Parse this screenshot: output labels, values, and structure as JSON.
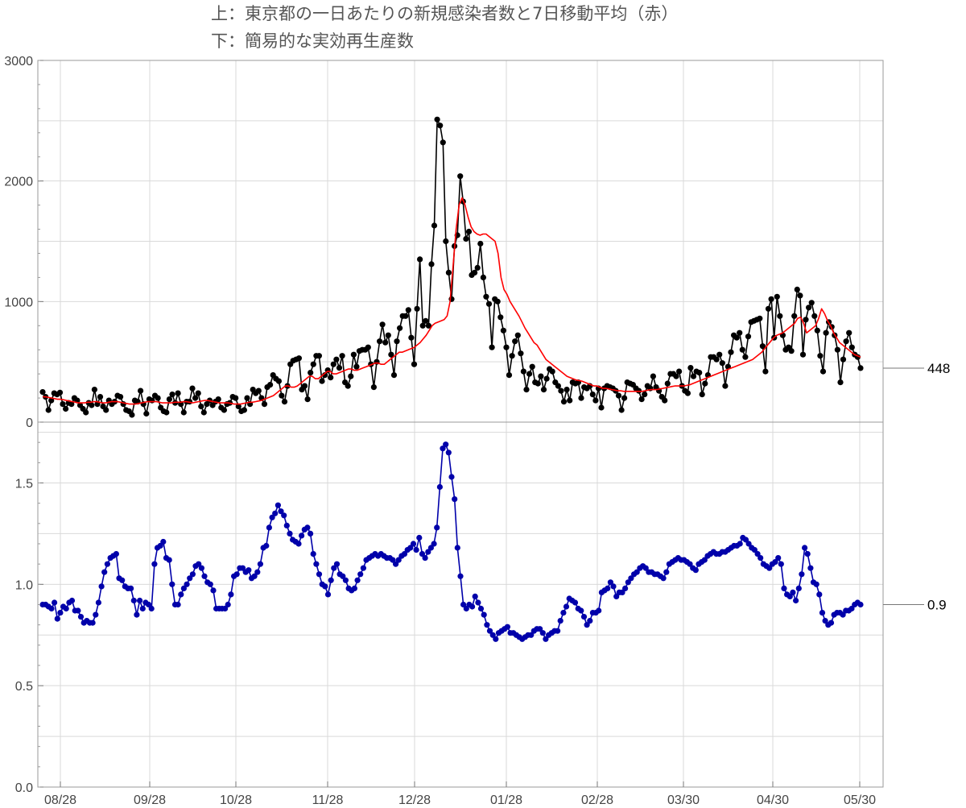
{
  "title": {
    "line1": "上：東京都の一日あたりの新規感染者数と7日移動平均（赤）",
    "line2": "下：簡易的な実効再生産数"
  },
  "chart_data": [
    {
      "type": "line",
      "panel": "top",
      "ylim": [
        0,
        3000
      ],
      "yticks": [
        "0",
        "1000",
        "2000",
        "3000"
      ],
      "grid": true,
      "callout_label": "448",
      "callout_value": 448,
      "series": [
        {
          "color": "#000000",
          "markers": true,
          "values": [
            250,
            210,
            100,
            180,
            240,
            230,
            245,
            150,
            110,
            160,
            150,
            200,
            180,
            140,
            110,
            80,
            160,
            140,
            270,
            150,
            210,
            130,
            100,
            180,
            150,
            170,
            220,
            210,
            150,
            100,
            90,
            60,
            180,
            170,
            260,
            150,
            70,
            190,
            180,
            220,
            200,
            120,
            90,
            80,
            190,
            230,
            160,
            240,
            150,
            80,
            170,
            170,
            280,
            200,
            240,
            130,
            80,
            150,
            180,
            140,
            170,
            190,
            120,
            100,
            150,
            160,
            210,
            200,
            130,
            90,
            100,
            200,
            150,
            270,
            240,
            260,
            200,
            150,
            290,
            310,
            390,
            360,
            340,
            220,
            170,
            300,
            480,
            510,
            520,
            530,
            270,
            300,
            190,
            410,
            480,
            550,
            550,
            340,
            390,
            430,
            370,
            480,
            520,
            450,
            550,
            330,
            300,
            380,
            560,
            460,
            590,
            600,
            600,
            620,
            480,
            290,
            500,
            670,
            810,
            660,
            720,
            560,
            390,
            670,
            780,
            880,
            880,
            930,
            700,
            480,
            940,
            1350,
            800,
            840,
            800,
            1310,
            1630,
            2510,
            2460,
            2320,
            1500,
            1240,
            1020,
            1460,
            1550,
            2040,
            1830,
            1520,
            1580,
            1220,
            1240,
            1280,
            1480,
            1200,
            1040,
            980,
            620,
            1020,
            1000,
            870,
            760,
            620,
            390,
            550,
            670,
            720,
            570,
            420,
            270,
            400,
            460,
            330,
            320,
            380,
            270,
            360,
            440,
            420,
            330,
            300,
            260,
            170,
            270,
            180,
            330,
            320,
            330,
            200,
            290,
            280,
            300,
            230,
            180,
            280,
            120,
            280,
            300,
            290,
            280,
            260,
            220,
            100,
            200,
            330,
            320,
            310,
            280,
            260,
            190,
            230,
            300,
            280,
            380,
            290,
            260,
            210,
            180,
            320,
            400,
            400,
            380,
            420,
            300,
            260,
            240,
            450,
            380,
            420,
            410,
            230,
            320,
            390,
            540,
            540,
            520,
            560,
            490,
            300,
            460,
            580,
            720,
            700,
            740,
            600,
            540,
            710,
            830,
            840,
            850,
            860,
            630,
            420,
            940,
            1020,
            700,
            1040,
            880,
            720,
            600,
            620,
            590,
            880,
            1100,
            1050,
            560,
            850,
            950,
            990,
            880,
            760,
            550,
            420,
            740,
            830,
            790,
            720,
            600,
            330,
            520,
            670,
            740,
            620,
            560,
            540,
            448
          ]
        },
        {
          "color": "#ff0000",
          "markers": false,
          "values": [
            210,
            210,
            205,
            200,
            195,
            190,
            190,
            185,
            180,
            175,
            170,
            165,
            160,
            160,
            160,
            165,
            165,
            170,
            170,
            165,
            160,
            160,
            165,
            170,
            170,
            170,
            165,
            160,
            155,
            150,
            150,
            150,
            155,
            160,
            165,
            170,
            170,
            170,
            170,
            165,
            160,
            160,
            160,
            160,
            165,
            165,
            165,
            170,
            170,
            165,
            160,
            165,
            170,
            175,
            180,
            180,
            175,
            170,
            165,
            160,
            160,
            160,
            160,
            155,
            150,
            150,
            150,
            155,
            160,
            165,
            165,
            170,
            175,
            180,
            190,
            200,
            210,
            220,
            240,
            260,
            280,
            300,
            300,
            290,
            290,
            300,
            320,
            340,
            360,
            380,
            380,
            360,
            360,
            380,
            400,
            420,
            420,
            400,
            400,
            410,
            420,
            430,
            440,
            440,
            430,
            430,
            440,
            450,
            460,
            470,
            480,
            490,
            490,
            480,
            480,
            500,
            520,
            540,
            560,
            580,
            580,
            590,
            600,
            610,
            620,
            640,
            660,
            690,
            720,
            760,
            800,
            820,
            830,
            840,
            850,
            880,
            1000,
            1300,
            1600,
            1800,
            1860,
            1800,
            1700,
            1620,
            1580,
            1560,
            1550,
            1560,
            1560,
            1540,
            1520,
            1500,
            1400,
            1200,
            1100,
            1060,
            1000,
            960,
            920,
            880,
            830,
            780,
            740,
            700,
            660,
            640,
            600,
            560,
            520,
            500,
            480,
            460,
            440,
            420,
            400,
            380,
            370,
            360,
            350,
            345,
            340,
            330,
            320,
            310,
            300,
            300,
            290,
            280,
            280,
            275,
            270,
            265,
            260,
            260,
            255,
            255,
            255,
            255,
            255,
            255,
            255,
            260,
            265,
            270,
            270,
            270,
            275,
            280,
            285,
            290,
            295,
            300,
            300,
            300,
            300,
            305,
            310,
            320,
            330,
            340,
            350,
            360,
            370,
            380,
            390,
            400,
            410,
            420,
            430,
            440,
            450,
            460,
            470,
            480,
            490,
            500,
            510,
            520,
            540,
            560,
            580,
            610,
            640,
            670,
            700,
            720,
            730,
            740,
            760,
            780,
            800,
            820,
            860,
            870,
            820,
            740,
            760,
            780,
            800,
            860,
            940,
            900,
            840,
            800,
            740,
            700,
            660,
            640,
            620,
            600,
            580,
            560,
            550,
            540
          ]
        }
      ]
    },
    {
      "type": "line",
      "panel": "bottom",
      "ylim": [
        0,
        1.8
      ],
      "yticks": [
        "0.0",
        "0.5",
        "1.0",
        "1.5"
      ],
      "grid": true,
      "callout_label": "0.9",
      "callout_value": 0.9,
      "series": [
        {
          "color": "#0000aa",
          "markers": true,
          "values": [
            0.9,
            0.9,
            0.89,
            0.88,
            0.91,
            0.83,
            0.86,
            0.89,
            0.88,
            0.91,
            0.92,
            0.87,
            0.87,
            0.84,
            0.81,
            0.82,
            0.81,
            0.81,
            0.85,
            0.91,
            0.99,
            1.06,
            1.1,
            1.13,
            1.14,
            1.15,
            1.03,
            1.02,
            0.99,
            0.98,
            0.98,
            0.92,
            0.85,
            0.92,
            0.88,
            0.91,
            0.9,
            0.88,
            1.1,
            1.18,
            1.19,
            1.21,
            1.13,
            1.12,
            1.0,
            0.9,
            0.9,
            0.95,
            0.98,
            1.0,
            1.03,
            1.05,
            1.09,
            1.1,
            1.08,
            1.04,
            1.01,
            1.0,
            0.97,
            0.88,
            0.88,
            0.88,
            0.88,
            0.9,
            0.95,
            1.04,
            1.05,
            1.08,
            1.08,
            1.06,
            1.07,
            1.03,
            1.04,
            1.06,
            1.1,
            1.18,
            1.19,
            1.28,
            1.33,
            1.35,
            1.39,
            1.36,
            1.34,
            1.29,
            1.25,
            1.22,
            1.21,
            1.2,
            1.24,
            1.27,
            1.28,
            1.25,
            1.15,
            1.1,
            1.05,
            1.0,
            0.99,
            0.95,
            1.02,
            1.08,
            1.1,
            1.05,
            1.04,
            1.02,
            0.98,
            0.97,
            0.98,
            1.02,
            1.05,
            1.08,
            1.12,
            1.13,
            1.14,
            1.15,
            1.14,
            1.15,
            1.14,
            1.13,
            1.13,
            1.12,
            1.1,
            1.12,
            1.14,
            1.15,
            1.17,
            1.18,
            1.2,
            1.17,
            1.23,
            1.15,
            1.13,
            1.16,
            1.18,
            1.2,
            1.28,
            1.48,
            1.67,
            1.69,
            1.65,
            1.53,
            1.42,
            1.18,
            1.04,
            0.9,
            0.88,
            0.9,
            0.89,
            0.94,
            0.91,
            0.88,
            0.85,
            0.8,
            0.77,
            0.75,
            0.73,
            0.76,
            0.77,
            0.78,
            0.79,
            0.76,
            0.76,
            0.75,
            0.74,
            0.73,
            0.74,
            0.75,
            0.75,
            0.77,
            0.78,
            0.78,
            0.76,
            0.73,
            0.75,
            0.76,
            0.77,
            0.77,
            0.82,
            0.86,
            0.89,
            0.93,
            0.92,
            0.91,
            0.88,
            0.87,
            0.84,
            0.8,
            0.82,
            0.86,
            0.86,
            0.87,
            0.96,
            0.97,
            0.98,
            1.01,
            0.99,
            0.94,
            0.96,
            0.96,
            0.98,
            1.01,
            1.03,
            1.05,
            1.06,
            1.08,
            1.09,
            1.08,
            1.06,
            1.06,
            1.05,
            1.05,
            1.04,
            1.03,
            1.06,
            1.1,
            1.11,
            1.12,
            1.13,
            1.12,
            1.12,
            1.11,
            1.1,
            1.08,
            1.07,
            1.1,
            1.11,
            1.12,
            1.14,
            1.15,
            1.16,
            1.15,
            1.15,
            1.16,
            1.16,
            1.17,
            1.18,
            1.19,
            1.19,
            1.2,
            1.23,
            1.22,
            1.2,
            1.18,
            1.17,
            1.15,
            1.13,
            1.1,
            1.09,
            1.08,
            1.1,
            1.11,
            1.13,
            1.1,
            0.98,
            0.95,
            0.94,
            0.96,
            0.92,
            0.98,
            1.05,
            1.18,
            1.15,
            1.08,
            1.01,
            1.0,
            0.95,
            0.86,
            0.82,
            0.8,
            0.81,
            0.85,
            0.86,
            0.86,
            0.85,
            0.87,
            0.87,
            0.88,
            0.9,
            0.91,
            0.9
          ]
        }
      ]
    }
  ],
  "x_axis": {
    "tick_labels": [
      "08/28",
      "09/28",
      "10/28",
      "11/28",
      "12/28",
      "01/28",
      "02/28",
      "03/30",
      "04/30",
      "05/30"
    ]
  }
}
